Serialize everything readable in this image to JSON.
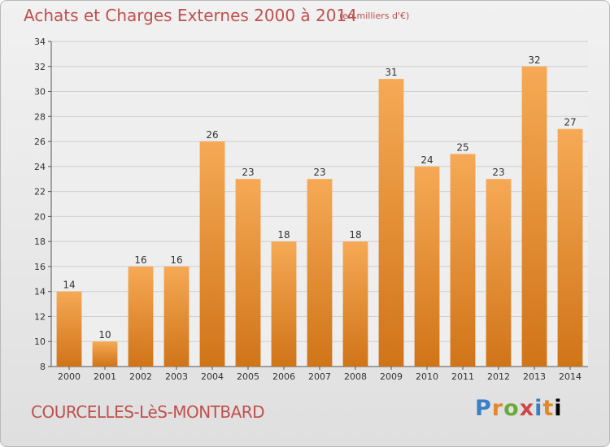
{
  "header": {
    "title": "Achats et Charges Externes 2000 à 2014",
    "subtitle": "(en milliers d'€)"
  },
  "footer": {
    "commune": "COURCELLES-LèS-MONTBARD",
    "logo_letters": [
      "P",
      "r",
      "o",
      "x",
      "i",
      "t",
      "i"
    ]
  },
  "colors": {
    "title": "#c0504d",
    "bar_light": "#f6a955",
    "bar_dark": "#d07418",
    "background": "#ebebeb"
  },
  "chart_data": {
    "type": "bar",
    "title": "Achats et Charges Externes 2000 à 2014",
    "subtitle": "(en milliers d'€)",
    "categories": [
      "2000",
      "2001",
      "2002",
      "2003",
      "2004",
      "2005",
      "2006",
      "2007",
      "2008",
      "2009",
      "2010",
      "2011",
      "2012",
      "2013",
      "2014"
    ],
    "values": [
      14,
      10,
      16,
      16,
      26,
      23,
      18,
      23,
      18,
      31,
      24,
      25,
      23,
      32,
      27
    ],
    "ylim": [
      8,
      34
    ],
    "yticks": [
      8,
      10,
      12,
      14,
      16,
      18,
      20,
      22,
      24,
      26,
      28,
      30,
      32,
      34
    ],
    "grid": true,
    "legend": "none"
  }
}
